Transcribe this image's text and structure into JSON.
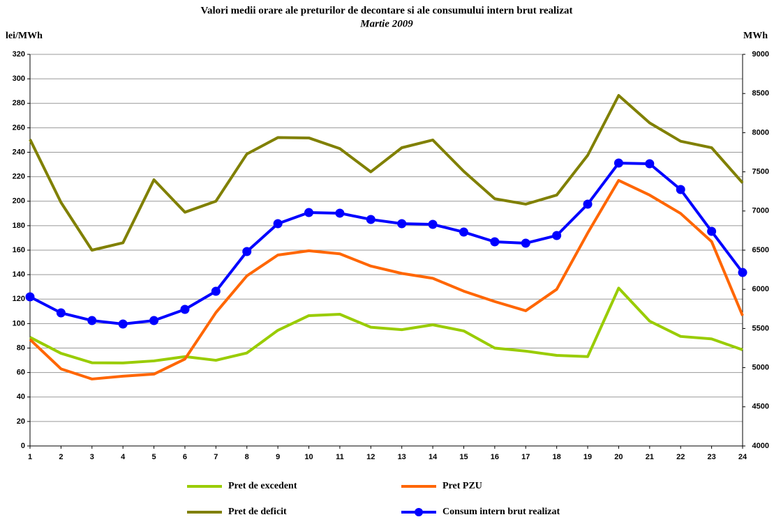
{
  "chart_data": {
    "type": "line",
    "title": "Valori medii orare ale preturilor de decontare si ale consumului intern brut realizat",
    "subtitle": "Martie 2009",
    "y_label": "lei/MWh",
    "y2_label": "MWh",
    "categories": [
      "1",
      "2",
      "3",
      "4",
      "5",
      "6",
      "7",
      "8",
      "9",
      "10",
      "11",
      "12",
      "13",
      "14",
      "15",
      "16",
      "17",
      "18",
      "19",
      "20",
      "21",
      "22",
      "23",
      "24"
    ],
    "ylim": [
      0,
      320
    ],
    "yticks": [
      0,
      20,
      40,
      60,
      80,
      100,
      120,
      140,
      160,
      180,
      200,
      220,
      240,
      260,
      280,
      300,
      320
    ],
    "y2lim": [
      4000,
      9000
    ],
    "y2ticks": [
      4000,
      4500,
      5000,
      5500,
      6000,
      6500,
      7000,
      7500,
      8000,
      8500,
      9000
    ],
    "grid": true,
    "series": [
      {
        "name": "Pret de excedent",
        "color": "#99cc00",
        "values": [
          88.8,
          75.7,
          68,
          67.8,
          69.5,
          73,
          70,
          76,
          94.5,
          106.5,
          107.6,
          97,
          95,
          99,
          94,
          80,
          77.5,
          74,
          73,
          129,
          102,
          89.5,
          87.5,
          78.6
        ]
      },
      {
        "name": "Pret PZU",
        "color": "#ff6600",
        "values": [
          87,
          63,
          54.7,
          57,
          58.7,
          71,
          109,
          139,
          156,
          159.5,
          157,
          147,
          141,
          137,
          126.5,
          118,
          110.5,
          128,
          174,
          217,
          205,
          190,
          167,
          106.5
        ]
      },
      {
        "name": "Pret de deficit",
        "color": "#808000",
        "values": [
          250.5,
          199,
          160,
          166,
          217.5,
          191,
          200,
          238.6,
          252,
          251.7,
          243,
          224,
          243.7,
          250,
          224.4,
          202,
          197.6,
          205,
          237.5,
          286.4,
          264,
          249,
          243.7,
          215
        ]
      },
      {
        "name": "Consum intern brut realizat",
        "color": "#0000ff",
        "axis": "y2",
        "marker": true,
        "values": [
          5904,
          5699,
          5601,
          5557,
          5601,
          5744,
          5975,
          6482,
          6838,
          6980,
          6972,
          6892,
          6838,
          6829,
          6731,
          6607,
          6589,
          6687,
          7087,
          7612,
          7603,
          7274,
          6740,
          6215
        ]
      }
    ]
  }
}
